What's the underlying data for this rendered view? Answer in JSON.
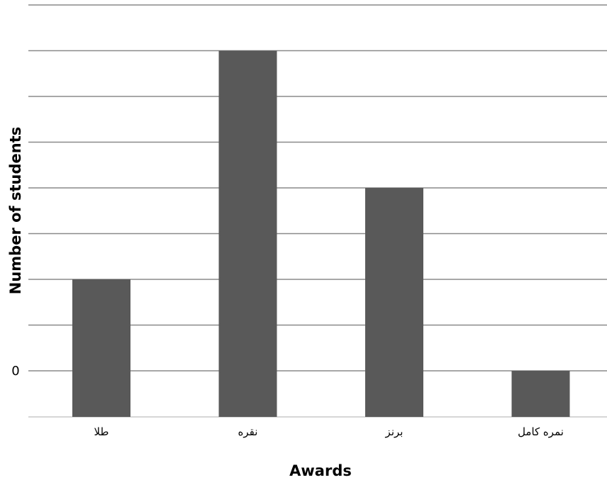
{
  "chart_data": {
    "type": "bar",
    "categories": [
      "طلا",
      "نقره",
      "برنز",
      "نمره کامل"
    ],
    "values": [
      2,
      7,
      4,
      0
    ],
    "xlabel": "Awards",
    "ylabel": "Number of students",
    "ylim": [
      0,
      8
    ],
    "ytick_labels": [
      {
        "value": 0,
        "label": "0"
      }
    ],
    "grid": true,
    "legend": "none",
    "colors": {
      "bar": "#595959",
      "grid": "#8a8a8a",
      "baseline": "#c8c8c8"
    }
  }
}
